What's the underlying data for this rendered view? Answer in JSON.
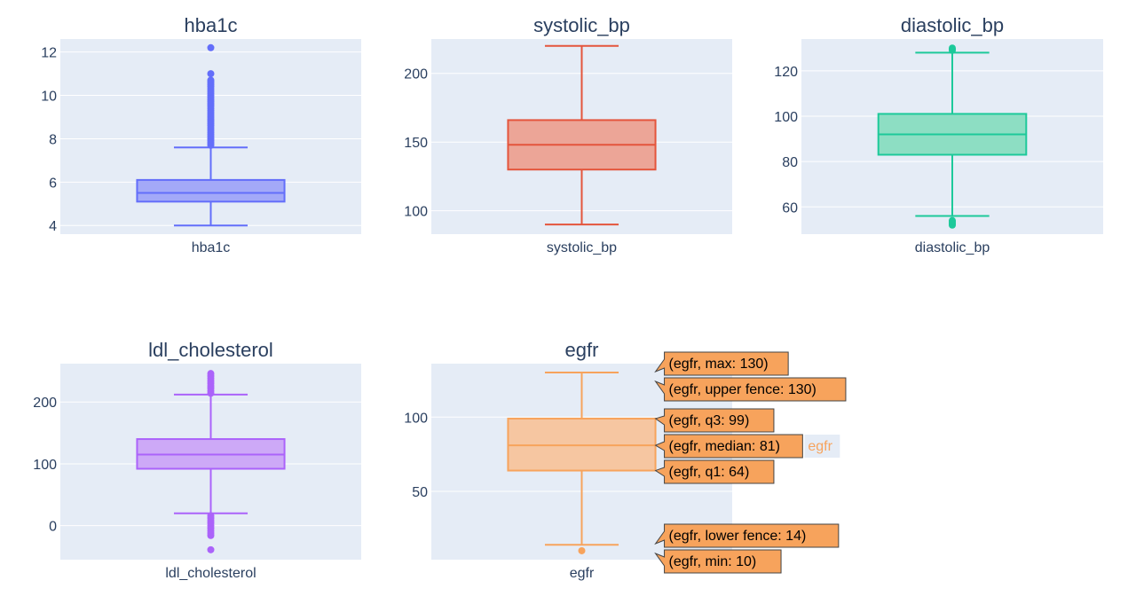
{
  "colors": {
    "plot_bg": "#e5ecf6",
    "grid": "#ffffff",
    "text": "#2a3f5f",
    "hover_bg": "#f7a35c"
  },
  "chart_data": [
    {
      "type": "box",
      "title": "hba1c",
      "xlabel": "hba1c",
      "ylim": [
        3.6,
        12.6
      ],
      "yticks": [
        4,
        6,
        8,
        10,
        12
      ],
      "color": "#636efa",
      "fill": "#a3a9f8",
      "box": {
        "min": 4.0,
        "lower_fence": 4.0,
        "q1": 5.1,
        "median": 5.5,
        "q3": 6.1,
        "upper_fence": 7.6
      },
      "outliers": [
        7.7,
        7.8,
        7.9,
        8.0,
        8.1,
        8.2,
        8.3,
        8.4,
        8.5,
        8.6,
        8.7,
        8.8,
        8.9,
        9.0,
        9.1,
        9.2,
        9.3,
        9.4,
        9.5,
        9.6,
        9.7,
        9.8,
        9.9,
        10.0,
        10.1,
        10.2,
        10.3,
        10.4,
        10.5,
        10.6,
        10.7,
        11.0,
        12.2
      ]
    },
    {
      "type": "box",
      "title": "systolic_bp",
      "xlabel": "systolic_bp",
      "ylim": [
        83,
        225
      ],
      "yticks": [
        100,
        150,
        200
      ],
      "color": "#e4553c",
      "fill": "#eca597",
      "box": {
        "min": 90,
        "lower_fence": 90,
        "q1": 130,
        "median": 148,
        "q3": 166,
        "upper_fence": 220
      },
      "outliers": []
    },
    {
      "type": "box",
      "title": "diastolic_bp",
      "xlabel": "diastolic_bp",
      "ylim": [
        48,
        134
      ],
      "yticks": [
        60,
        80,
        100,
        120
      ],
      "color": "#1dc99a",
      "fill": "#8ddec3",
      "box": {
        "min": 52,
        "lower_fence": 56,
        "q1": 83,
        "median": 92,
        "q3": 101,
        "upper_fence": 128
      },
      "outliers": [
        52,
        52.5,
        53,
        53.5,
        54,
        129,
        129.5,
        130
      ]
    },
    {
      "type": "box",
      "title": "ldl_cholesterol",
      "xlabel": "ldl_cholesterol",
      "ylim": [
        -55,
        262
      ],
      "yticks": [
        0,
        100,
        200
      ],
      "color": "#ab63fa",
      "fill": "#cda9f7",
      "box": {
        "min": -39,
        "lower_fence": 20,
        "q1": 92,
        "median": 115,
        "q3": 140,
        "upper_fence": 212
      },
      "outliers": [
        -39,
        -16,
        -12,
        -8,
        -4,
        0,
        4,
        8,
        12,
        16,
        214,
        218,
        222,
        226,
        230,
        234,
        238,
        242,
        246
      ]
    },
    {
      "type": "box",
      "title": "egfr",
      "xlabel": "egfr",
      "ylim": [
        4,
        136
      ],
      "yticks": [
        50,
        100
      ],
      "color": "#f7a35c",
      "fill": "#f6c6a1",
      "box": {
        "min": 10,
        "lower_fence": 14,
        "q1": 64,
        "median": 81,
        "q3": 99,
        "upper_fence": 130,
        "max": 130
      },
      "outliers": [
        10
      ],
      "hover": {
        "labels": [
          {
            "text": "(egfr, max: 130)",
            "value": 130
          },
          {
            "text": "(egfr, upper fence: 130)",
            "value": 130
          },
          {
            "text": "(egfr, q3: 99)",
            "value": 99
          },
          {
            "text": "(egfr, median: 81)",
            "value": 81
          },
          {
            "text": "(egfr, q1: 64)",
            "value": 64
          },
          {
            "text": "(egfr, lower fence: 14)",
            "value": 14
          },
          {
            "text": "(egfr, min: 10)",
            "value": 10
          }
        ],
        "trace_name": "egfr"
      }
    }
  ]
}
